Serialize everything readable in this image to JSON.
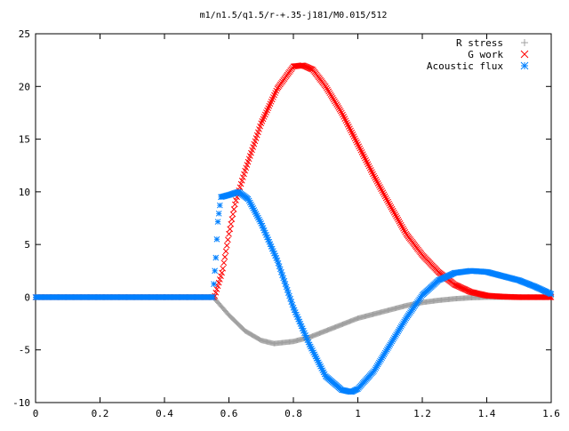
{
  "chart_data": {
    "type": "scatter",
    "title": "m1/n1.5/q1.5/r-+.35-j181/M0.015/512",
    "xlabel": "",
    "ylabel": "",
    "xlim": [
      0,
      1.6
    ],
    "ylim": [
      -10,
      25
    ],
    "x_ticks": [
      "0",
      "0.2",
      "0.4",
      "0.6",
      "0.8",
      "1",
      "1.2",
      "1.4",
      "1.6"
    ],
    "y_ticks": [
      "-10",
      "-5",
      "0",
      "5",
      "10",
      "15",
      "20",
      "25"
    ],
    "grid": false,
    "legend_position": "top-right",
    "series": [
      {
        "name": "R stress",
        "marker": "plus",
        "color": "#a0a0a0",
        "points": [
          [
            0,
            0
          ],
          [
            0.55,
            0
          ],
          [
            0.56,
            -0.3
          ],
          [
            0.6,
            -1.7
          ],
          [
            0.65,
            -3.2
          ],
          [
            0.7,
            -4.1
          ],
          [
            0.74,
            -4.4
          ],
          [
            0.8,
            -4.2
          ],
          [
            0.85,
            -3.8
          ],
          [
            0.9,
            -3.2
          ],
          [
            0.95,
            -2.6
          ],
          [
            1.0,
            -2.0
          ],
          [
            1.05,
            -1.6
          ],
          [
            1.1,
            -1.2
          ],
          [
            1.15,
            -0.8
          ],
          [
            1.2,
            -0.5
          ],
          [
            1.25,
            -0.3
          ],
          [
            1.3,
            -0.15
          ],
          [
            1.35,
            -0.05
          ],
          [
            1.4,
            0
          ],
          [
            1.5,
            0
          ],
          [
            1.6,
            0
          ]
        ]
      },
      {
        "name": "G work",
        "marker": "cross",
        "color": "#ff0000",
        "points": [
          [
            0,
            0
          ],
          [
            0.555,
            0
          ],
          [
            0.56,
            0.5
          ],
          [
            0.58,
            2.5
          ],
          [
            0.6,
            6
          ],
          [
            0.62,
            9
          ],
          [
            0.65,
            12
          ],
          [
            0.7,
            16.5
          ],
          [
            0.75,
            19.8
          ],
          [
            0.8,
            21.9
          ],
          [
            0.83,
            22
          ],
          [
            0.86,
            21.6
          ],
          [
            0.9,
            20
          ],
          [
            0.95,
            17.5
          ],
          [
            1.0,
            14.5
          ],
          [
            1.05,
            11.5
          ],
          [
            1.1,
            8.7
          ],
          [
            1.15,
            6
          ],
          [
            1.2,
            4
          ],
          [
            1.25,
            2.4
          ],
          [
            1.3,
            1.2
          ],
          [
            1.35,
            0.5
          ],
          [
            1.4,
            0.15
          ],
          [
            1.45,
            0.05
          ],
          [
            1.5,
            0
          ],
          [
            1.6,
            0
          ]
        ]
      },
      {
        "name": "Acoustic flux",
        "marker": "star",
        "color": "#0080ff",
        "points": [
          [
            0,
            0
          ],
          [
            0.55,
            0
          ],
          [
            0.56,
            4.0
          ],
          [
            0.565,
            7.0
          ],
          [
            0.575,
            9.5
          ],
          [
            0.6,
            9.7
          ],
          [
            0.63,
            10
          ],
          [
            0.66,
            9.3
          ],
          [
            0.7,
            7
          ],
          [
            0.75,
            3.5
          ],
          [
            0.8,
            -1
          ],
          [
            0.85,
            -4.5
          ],
          [
            0.9,
            -7.5
          ],
          [
            0.95,
            -8.8
          ],
          [
            0.98,
            -9.0
          ],
          [
            1.0,
            -8.7
          ],
          [
            1.05,
            -7
          ],
          [
            1.1,
            -4.5
          ],
          [
            1.15,
            -2
          ],
          [
            1.2,
            0.2
          ],
          [
            1.25,
            1.6
          ],
          [
            1.3,
            2.3
          ],
          [
            1.35,
            2.5
          ],
          [
            1.4,
            2.4
          ],
          [
            1.45,
            2.0
          ],
          [
            1.5,
            1.6
          ],
          [
            1.55,
            1.0
          ],
          [
            1.6,
            0.3
          ]
        ]
      }
    ]
  }
}
